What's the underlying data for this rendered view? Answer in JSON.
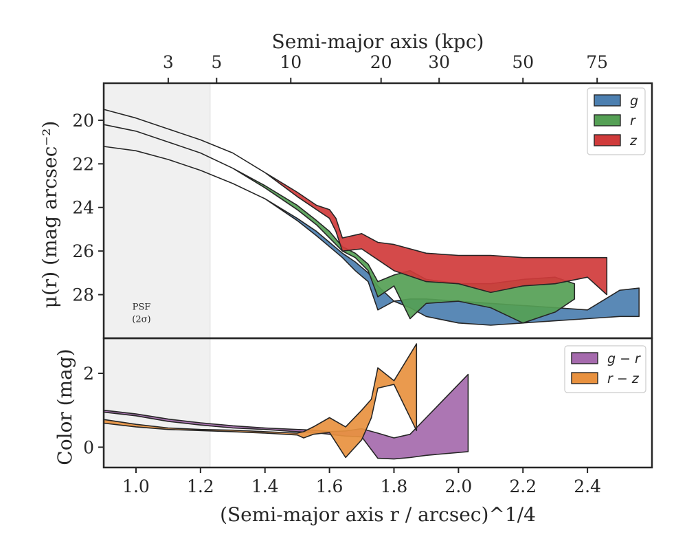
{
  "chart_data": [
    {
      "type": "area",
      "panel": "surface-brightness",
      "ylabel": "μ(r) (mag arcsec⁻²)",
      "ylim": [
        30.0,
        18.3
      ],
      "yticks": [
        20,
        22,
        24,
        26,
        28
      ],
      "top_xlabel": "Semi-major axis (kpc)",
      "top_ticks": [
        {
          "label": "3",
          "x": 1.1
        },
        {
          "label": "5",
          "x": 1.25
        },
        {
          "label": "10",
          "x": 1.48
        },
        {
          "label": "20",
          "x": 1.76
        },
        {
          "label": "30",
          "x": 1.94
        },
        {
          "label": "50",
          "x": 2.2
        },
        {
          "label": "75",
          "x": 2.43
        }
      ],
      "annotation": {
        "line1": "PSF",
        "line2": "(2σ)",
        "x": 1.0,
        "y": 29.0
      },
      "series": [
        {
          "name": "g",
          "color": "#4c7fb0",
          "x": [
            0.9,
            1.0,
            1.1,
            1.2,
            1.3,
            1.4,
            1.5,
            1.56,
            1.6,
            1.64,
            1.68,
            1.72,
            1.75,
            1.8,
            1.85,
            1.9,
            2.0,
            2.1,
            2.2,
            2.3,
            2.4,
            2.5,
            2.56
          ],
          "low": [
            21.2,
            21.4,
            21.8,
            22.3,
            22.9,
            23.6,
            24.5,
            25.1,
            25.6,
            26.1,
            26.5,
            27.0,
            27.6,
            28.3,
            28.2,
            28.2,
            28.3,
            28.4,
            28.5,
            28.6,
            28.7,
            27.8,
            27.7
          ],
          "high": [
            21.2,
            21.4,
            21.8,
            22.3,
            22.9,
            23.6,
            24.6,
            25.3,
            25.8,
            26.3,
            26.9,
            27.4,
            28.7,
            28.3,
            28.6,
            29.0,
            29.3,
            29.4,
            29.3,
            29.2,
            29.1,
            29.0,
            29.0
          ]
        },
        {
          "name": "r",
          "color": "#55a055",
          "x": [
            0.9,
            1.0,
            1.1,
            1.2,
            1.3,
            1.4,
            1.5,
            1.56,
            1.6,
            1.64,
            1.68,
            1.72,
            1.75,
            1.8,
            1.85,
            1.9,
            2.0,
            2.1,
            2.2,
            2.3,
            2.36
          ],
          "low": [
            20.2,
            20.5,
            21.0,
            21.5,
            22.2,
            23.0,
            23.9,
            24.6,
            25.1,
            25.8,
            26.1,
            26.6,
            27.4,
            27.1,
            26.9,
            27.3,
            27.5,
            27.5,
            27.3,
            27.2,
            27.5
          ],
          "high": [
            20.2,
            20.5,
            21.0,
            21.5,
            22.2,
            23.1,
            24.1,
            24.8,
            25.4,
            26.0,
            26.3,
            26.9,
            28.1,
            27.6,
            29.1,
            28.4,
            28.3,
            28.6,
            29.3,
            28.8,
            28.2
          ]
        },
        {
          "name": "z",
          "color": "#d03b3b",
          "x": [
            0.9,
            1.0,
            1.1,
            1.2,
            1.3,
            1.4,
            1.5,
            1.56,
            1.6,
            1.62,
            1.64,
            1.7,
            1.75,
            1.8,
            1.9,
            2.0,
            2.1,
            2.2,
            2.3,
            2.4,
            2.46
          ],
          "low": [
            19.5,
            19.9,
            20.4,
            20.9,
            21.5,
            22.4,
            23.3,
            23.9,
            24.1,
            24.5,
            25.4,
            25.2,
            25.6,
            25.7,
            26.1,
            26.2,
            26.2,
            26.3,
            26.3,
            26.3,
            26.3
          ],
          "high": [
            19.5,
            19.9,
            20.4,
            20.9,
            21.5,
            22.4,
            23.5,
            24.1,
            24.5,
            25.1,
            26.0,
            25.9,
            26.4,
            26.9,
            27.4,
            27.5,
            27.9,
            27.6,
            27.5,
            27.2,
            28.0
          ]
        }
      ]
    },
    {
      "type": "area",
      "panel": "color",
      "xlabel": "(Semi-major axis r / arcsec)^1/4",
      "ylabel": "Color (mag)",
      "xlim": [
        0.9,
        2.6
      ],
      "ylim": [
        -0.55,
        2.95
      ],
      "xticks": [
        1.0,
        1.2,
        1.4,
        1.6,
        1.8,
        2.0,
        2.2,
        2.4
      ],
      "xtick_labels": [
        "1.0",
        "1.2",
        "1.4",
        "1.6",
        "1.8",
        "2.0",
        "2.2",
        "2.4"
      ],
      "yticks": [
        0,
        2
      ],
      "series": [
        {
          "name": "g − r",
          "color": "#a56aad",
          "x": [
            0.9,
            1.0,
            1.1,
            1.2,
            1.3,
            1.4,
            1.5,
            1.55,
            1.6,
            1.65,
            1.7,
            1.75,
            1.8,
            1.85,
            1.9,
            2.03
          ],
          "low": [
            0.95,
            0.85,
            0.7,
            0.6,
            0.52,
            0.48,
            0.42,
            0.4,
            0.35,
            0.3,
            0.28,
            -0.3,
            -0.32,
            -0.28,
            -0.22,
            -0.12
          ],
          "high": [
            1.0,
            0.9,
            0.76,
            0.66,
            0.58,
            0.52,
            0.48,
            0.46,
            0.42,
            0.44,
            0.5,
            0.38,
            0.25,
            0.35,
            0.8,
            1.97
          ]
        },
        {
          "name": "r − z",
          "color": "#e8913f",
          "x": [
            0.9,
            1.0,
            1.1,
            1.2,
            1.3,
            1.4,
            1.5,
            1.52,
            1.55,
            1.6,
            1.65,
            1.7,
            1.73,
            1.75,
            1.8,
            1.87
          ],
          "low": [
            0.65,
            0.55,
            0.48,
            0.45,
            0.42,
            0.38,
            0.33,
            0.25,
            0.35,
            0.4,
            -0.28,
            0.2,
            0.8,
            1.6,
            1.7,
            0.45
          ],
          "high": [
            0.75,
            0.62,
            0.52,
            0.48,
            0.46,
            0.42,
            0.38,
            0.42,
            0.55,
            0.8,
            0.55,
            1.0,
            1.3,
            2.15,
            1.8,
            2.8
          ]
        }
      ]
    }
  ]
}
